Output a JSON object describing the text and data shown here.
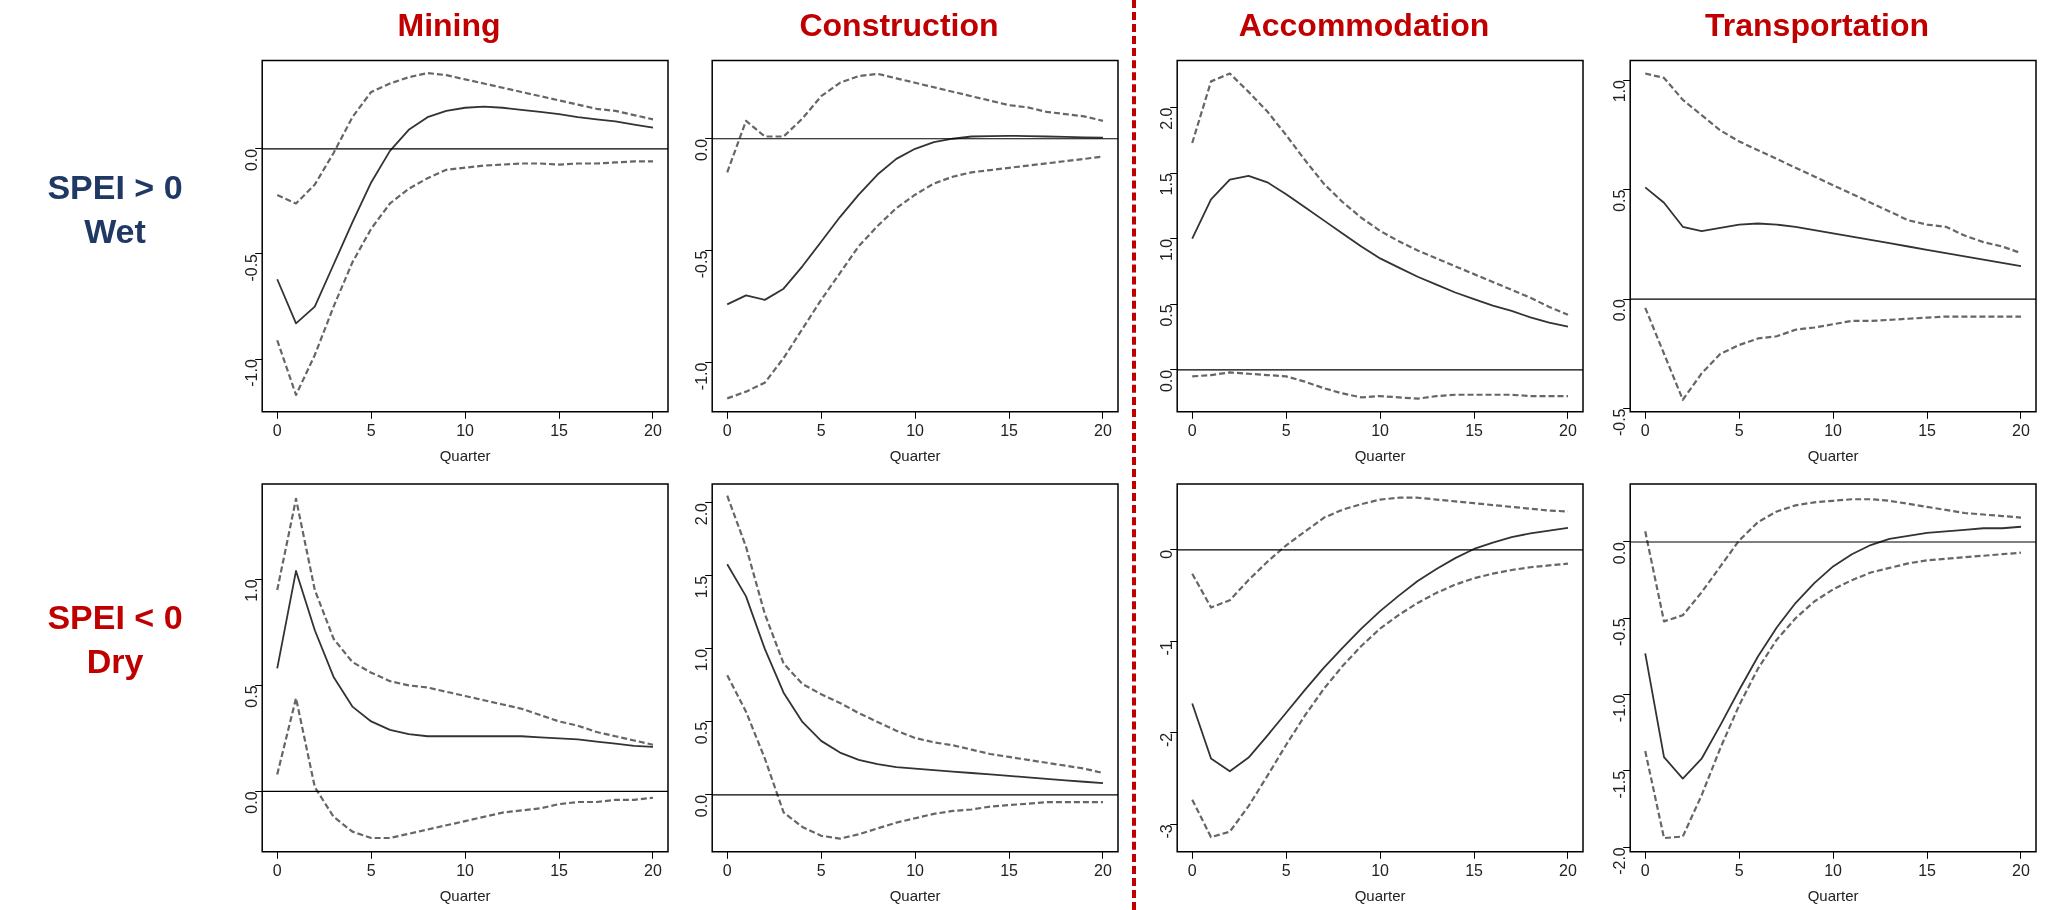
{
  "chart_data": [
    {
      "type": "line",
      "title": "Mining",
      "xlabel": "Quarter",
      "annotations": [
        "SPEI > 0",
        "Wet"
      ],
      "x": [
        0,
        1,
        2,
        3,
        4,
        5,
        6,
        7,
        8,
        9,
        10,
        11,
        12,
        13,
        14,
        15,
        16,
        17,
        18,
        19,
        20
      ],
      "xlim": [
        -0.8,
        20.8
      ],
      "xticks": [
        0,
        5,
        10,
        15,
        20
      ],
      "ylim": [
        -1.25,
        0.42
      ],
      "yticks": [
        {
          "value": -1,
          "label": "-1.0"
        },
        {
          "value": -0.5,
          "label": "-0.5"
        },
        {
          "value": 0,
          "label": "0.0"
        }
      ],
      "ref_lines": [
        {
          "axis": "y",
          "value": 0
        }
      ],
      "series": [
        {
          "color": "#333333",
          "line_style": "solid",
          "values": [
            -0.62,
            -0.83,
            -0.75,
            -0.55,
            -0.35,
            -0.16,
            -0.01,
            0.09,
            0.15,
            0.18,
            0.195,
            0.2,
            0.195,
            0.185,
            0.175,
            0.165,
            0.15,
            0.14,
            0.13,
            0.115,
            0.1
          ]
        },
        {
          "color": "#666666",
          "line_style": "dashed",
          "values": [
            -0.22,
            -0.26,
            -0.17,
            -0.02,
            0.15,
            0.27,
            0.31,
            0.34,
            0.36,
            0.35,
            0.33,
            0.31,
            0.29,
            0.27,
            0.25,
            0.23,
            0.21,
            0.19,
            0.18,
            0.16,
            0.14
          ]
        },
        {
          "color": "#666666",
          "line_style": "dashed",
          "values": [
            -0.91,
            -1.17,
            -0.98,
            -0.75,
            -0.54,
            -0.38,
            -0.26,
            -0.19,
            -0.14,
            -0.1,
            -0.09,
            -0.08,
            -0.075,
            -0.07,
            -0.07,
            -0.075,
            -0.07,
            -0.07,
            -0.065,
            -0.06,
            -0.06
          ]
        }
      ]
    },
    {
      "type": "line",
      "title": "Construction",
      "xlabel": "Quarter",
      "x": [
        0,
        1,
        2,
        3,
        4,
        5,
        6,
        7,
        8,
        9,
        10,
        11,
        12,
        13,
        14,
        15,
        16,
        17,
        18,
        19,
        20
      ],
      "xlim": [
        -0.8,
        20.8
      ],
      "xticks": [
        0,
        5,
        10,
        15,
        20
      ],
      "ylim": [
        -1.22,
        0.35
      ],
      "yticks": [
        {
          "value": -1,
          "label": "-1.0"
        },
        {
          "value": -0.5,
          "label": "-0.5"
        },
        {
          "value": 0,
          "label": "0.0"
        }
      ],
      "ref_lines": [
        {
          "axis": "y",
          "value": 0
        }
      ],
      "series": [
        {
          "color": "#333333",
          "line_style": "solid",
          "values": [
            -0.74,
            -0.7,
            -0.72,
            -0.67,
            -0.57,
            -0.46,
            -0.35,
            -0.25,
            -0.16,
            -0.09,
            -0.045,
            -0.015,
            0,
            0.01,
            0.012,
            0.013,
            0.012,
            0.01,
            0.008,
            0.006,
            0.005
          ]
        },
        {
          "color": "#666666",
          "line_style": "dashed",
          "values": [
            -0.15,
            0.08,
            0.01,
            0.01,
            0.09,
            0.19,
            0.25,
            0.28,
            0.29,
            0.27,
            0.25,
            0.23,
            0.21,
            0.19,
            0.17,
            0.15,
            0.14,
            0.12,
            0.11,
            0.1,
            0.08
          ]
        },
        {
          "color": "#666666",
          "line_style": "dashed",
          "values": [
            -1.16,
            -1.13,
            -1.09,
            -0.98,
            -0.85,
            -0.72,
            -0.6,
            -0.48,
            -0.39,
            -0.31,
            -0.25,
            -0.2,
            -0.17,
            -0.15,
            -0.14,
            -0.13,
            -0.12,
            -0.11,
            -0.1,
            -0.09,
            -0.08
          ]
        }
      ]
    },
    {
      "type": "line",
      "title": "Accommodation",
      "xlabel": "Quarter",
      "x": [
        0,
        1,
        2,
        3,
        4,
        5,
        6,
        7,
        8,
        9,
        10,
        11,
        12,
        13,
        14,
        15,
        16,
        17,
        18,
        19,
        20
      ],
      "xlim": [
        -0.8,
        20.8
      ],
      "xticks": [
        0,
        5,
        10,
        15,
        20
      ],
      "ylim": [
        -0.32,
        2.36
      ],
      "yticks": [
        {
          "value": 0,
          "label": "0.0"
        },
        {
          "value": 0.5,
          "label": "0.5"
        },
        {
          "value": 1,
          "label": "1.0"
        },
        {
          "value": 1.5,
          "label": "1.5"
        },
        {
          "value": 2,
          "label": "2.0"
        }
      ],
      "ref_lines": [
        {
          "axis": "y",
          "value": 0
        }
      ],
      "series": [
        {
          "color": "#333333",
          "line_style": "solid",
          "values": [
            1,
            1.3,
            1.45,
            1.48,
            1.43,
            1.34,
            1.24,
            1.14,
            1.04,
            0.94,
            0.85,
            0.78,
            0.71,
            0.65,
            0.59,
            0.54,
            0.49,
            0.45,
            0.4,
            0.36,
            0.33
          ]
        },
        {
          "color": "#666666",
          "line_style": "dashed",
          "values": [
            1.73,
            2.2,
            2.26,
            2.12,
            1.97,
            1.79,
            1.6,
            1.42,
            1.28,
            1.16,
            1.06,
            0.98,
            0.91,
            0.85,
            0.79,
            0.73,
            0.67,
            0.61,
            0.55,
            0.48,
            0.42
          ]
        },
        {
          "color": "#666666",
          "line_style": "dashed",
          "values": [
            -0.05,
            -0.04,
            -0.02,
            -0.03,
            -0.04,
            -0.05,
            -0.09,
            -0.14,
            -0.18,
            -0.21,
            -0.2,
            -0.21,
            -0.22,
            -0.2,
            -0.19,
            -0.19,
            -0.19,
            -0.19,
            -0.2,
            -0.2,
            -0.2
          ]
        }
      ]
    },
    {
      "type": "line",
      "title": "Transportation",
      "xlabel": "Quarter",
      "x": [
        0,
        1,
        2,
        3,
        4,
        5,
        6,
        7,
        8,
        9,
        10,
        11,
        12,
        13,
        14,
        15,
        16,
        17,
        18,
        19,
        20
      ],
      "xlim": [
        -0.8,
        20.8
      ],
      "xticks": [
        0,
        5,
        10,
        15,
        20
      ],
      "ylim": [
        -0.515,
        1.09
      ],
      "yticks": [
        {
          "value": -0.5,
          "label": "-0.5"
        },
        {
          "value": 0,
          "label": "0.0"
        },
        {
          "value": 0.5,
          "label": "0.5"
        },
        {
          "value": 1,
          "label": "1.0"
        }
      ],
      "ref_lines": [
        {
          "axis": "y",
          "value": 0
        }
      ],
      "series": [
        {
          "color": "#333333",
          "line_style": "solid",
          "values": [
            0.51,
            0.44,
            0.33,
            0.31,
            0.325,
            0.34,
            0.345,
            0.34,
            0.33,
            0.315,
            0.3,
            0.285,
            0.27,
            0.255,
            0.24,
            0.225,
            0.21,
            0.195,
            0.18,
            0.165,
            0.15
          ]
        },
        {
          "color": "#666666",
          "line_style": "dashed",
          "values": [
            1.03,
            1.01,
            0.91,
            0.84,
            0.77,
            0.72,
            0.68,
            0.64,
            0.6,
            0.56,
            0.52,
            0.48,
            0.44,
            0.4,
            0.36,
            0.34,
            0.33,
            0.29,
            0.26,
            0.24,
            0.21
          ]
        },
        {
          "color": "#666666",
          "line_style": "dashed",
          "values": [
            -0.04,
            -0.25,
            -0.46,
            -0.34,
            -0.25,
            -0.21,
            -0.18,
            -0.17,
            -0.14,
            -0.13,
            -0.115,
            -0.1,
            -0.1,
            -0.095,
            -0.09,
            -0.085,
            -0.08,
            -0.08,
            -0.08,
            -0.08,
            -0.08
          ]
        }
      ]
    },
    {
      "type": "line",
      "xlabel": "Quarter",
      "annotations": [
        "SPEI < 0",
        "Dry"
      ],
      "x": [
        0,
        1,
        2,
        3,
        4,
        5,
        6,
        7,
        8,
        9,
        10,
        11,
        12,
        13,
        14,
        15,
        16,
        17,
        18,
        19,
        20
      ],
      "xlim": [
        -0.8,
        20.8
      ],
      "xticks": [
        0,
        5,
        10,
        15,
        20
      ],
      "ylim": [
        -0.285,
        1.45
      ],
      "yticks": [
        {
          "value": 0,
          "label": "0.0"
        },
        {
          "value": 0.5,
          "label": "0.5"
        },
        {
          "value": 1,
          "label": "1.0"
        }
      ],
      "ref_lines": [
        {
          "axis": "y",
          "value": 0
        }
      ],
      "series": [
        {
          "color": "#333333",
          "line_style": "solid",
          "values": [
            0.58,
            1.04,
            0.76,
            0.54,
            0.4,
            0.33,
            0.29,
            0.27,
            0.26,
            0.26,
            0.26,
            0.26,
            0.26,
            0.26,
            0.255,
            0.25,
            0.245,
            0.235,
            0.225,
            0.215,
            0.21
          ]
        },
        {
          "color": "#666666",
          "line_style": "dashed",
          "values": [
            0.95,
            1.38,
            0.95,
            0.72,
            0.61,
            0.56,
            0.52,
            0.5,
            0.49,
            0.47,
            0.45,
            0.43,
            0.41,
            0.39,
            0.36,
            0.33,
            0.31,
            0.28,
            0.26,
            0.24,
            0.22
          ]
        },
        {
          "color": "#666666",
          "line_style": "dashed",
          "values": [
            0.08,
            0.44,
            0.02,
            -0.12,
            -0.19,
            -0.22,
            -0.22,
            -0.2,
            -0.18,
            -0.16,
            -0.14,
            -0.12,
            -0.1,
            -0.09,
            -0.08,
            -0.06,
            -0.05,
            -0.05,
            -0.04,
            -0.04,
            -0.03
          ]
        }
      ]
    },
    {
      "type": "line",
      "xlabel": "Quarter",
      "x": [
        0,
        1,
        2,
        3,
        4,
        5,
        6,
        7,
        8,
        9,
        10,
        11,
        12,
        13,
        14,
        15,
        16,
        17,
        18,
        19,
        20
      ],
      "xlim": [
        -0.8,
        20.8
      ],
      "xticks": [
        0,
        5,
        10,
        15,
        20
      ],
      "ylim": [
        -0.39,
        2.13
      ],
      "yticks": [
        {
          "value": 0,
          "label": "0.0"
        },
        {
          "value": 0.5,
          "label": "0.5"
        },
        {
          "value": 1,
          "label": "1.0"
        },
        {
          "value": 1.5,
          "label": "1.5"
        },
        {
          "value": 2,
          "label": "2.0"
        }
      ],
      "ref_lines": [
        {
          "axis": "y",
          "value": 0
        }
      ],
      "series": [
        {
          "color": "#333333",
          "line_style": "solid",
          "values": [
            1.58,
            1.36,
            1,
            0.7,
            0.5,
            0.37,
            0.29,
            0.24,
            0.21,
            0.19,
            0.18,
            0.17,
            0.16,
            0.15,
            0.14,
            0.13,
            0.12,
            0.11,
            0.1,
            0.09,
            0.08
          ]
        },
        {
          "color": "#666666",
          "line_style": "dashed",
          "values": [
            2.05,
            1.7,
            1.24,
            0.9,
            0.76,
            0.69,
            0.63,
            0.56,
            0.5,
            0.44,
            0.39,
            0.36,
            0.34,
            0.31,
            0.28,
            0.26,
            0.24,
            0.22,
            0.2,
            0.18,
            0.15
          ]
        },
        {
          "color": "#666666",
          "line_style": "dashed",
          "values": [
            0.82,
            0.57,
            0.25,
            -0.12,
            -0.22,
            -0.28,
            -0.3,
            -0.27,
            -0.23,
            -0.19,
            -0.16,
            -0.13,
            -0.11,
            -0.1,
            -0.08,
            -0.07,
            -0.06,
            -0.05,
            -0.05,
            -0.05,
            -0.05
          ]
        }
      ]
    },
    {
      "type": "line",
      "xlabel": "Quarter",
      "x": [
        0,
        1,
        2,
        3,
        4,
        5,
        6,
        7,
        8,
        9,
        10,
        11,
        12,
        13,
        14,
        15,
        16,
        17,
        18,
        19,
        20
      ],
      "xlim": [
        -0.8,
        20.8
      ],
      "xticks": [
        0,
        5,
        10,
        15,
        20
      ],
      "ylim": [
        -3.3,
        0.72
      ],
      "yticks": [
        {
          "value": -3,
          "label": "-3"
        },
        {
          "value": -2,
          "label": "-2"
        },
        {
          "value": -1,
          "label": "-1"
        },
        {
          "value": 0,
          "label": "0"
        }
      ],
      "ref_lines": [
        {
          "axis": "y",
          "value": 0
        }
      ],
      "series": [
        {
          "color": "#333333",
          "line_style": "solid",
          "values": [
            -1.68,
            -2.28,
            -2.42,
            -2.27,
            -2.03,
            -1.78,
            -1.53,
            -1.29,
            -1.07,
            -0.86,
            -0.67,
            -0.5,
            -0.34,
            -0.21,
            -0.09,
            0.01,
            0.08,
            0.14,
            0.18,
            0.21,
            0.24
          ]
        },
        {
          "color": "#666666",
          "line_style": "dashed",
          "values": [
            -0.26,
            -0.63,
            -0.55,
            -0.33,
            -0.13,
            0.05,
            0.2,
            0.35,
            0.44,
            0.5,
            0.55,
            0.57,
            0.57,
            0.55,
            0.53,
            0.51,
            0.49,
            0.47,
            0.45,
            0.43,
            0.42
          ]
        },
        {
          "color": "#666666",
          "line_style": "dashed",
          "values": [
            -2.73,
            -3.14,
            -3.08,
            -2.8,
            -2.47,
            -2.13,
            -1.81,
            -1.52,
            -1.27,
            -1.05,
            -0.86,
            -0.71,
            -0.58,
            -0.47,
            -0.38,
            -0.31,
            -0.26,
            -0.22,
            -0.19,
            -0.17,
            -0.15
          ]
        }
      ]
    },
    {
      "type": "line",
      "xlabel": "Quarter",
      "x": [
        0,
        1,
        2,
        3,
        4,
        5,
        6,
        7,
        8,
        9,
        10,
        11,
        12,
        13,
        14,
        15,
        16,
        17,
        18,
        19,
        20
      ],
      "xlim": [
        -0.8,
        20.8
      ],
      "xticks": [
        0,
        5,
        10,
        15,
        20
      ],
      "ylim": [
        -2.03,
        0.38
      ],
      "yticks": [
        {
          "value": -2,
          "label": "-2.0"
        },
        {
          "value": -1.5,
          "label": "-1.5"
        },
        {
          "value": -1,
          "label": "-1.0"
        },
        {
          "value": -0.5,
          "label": "-0.5"
        },
        {
          "value": 0,
          "label": "0.0"
        }
      ],
      "ref_lines": [
        {
          "axis": "y",
          "value": 0
        }
      ],
      "series": [
        {
          "color": "#333333",
          "line_style": "solid",
          "values": [
            -0.73,
            -1.41,
            -1.55,
            -1.42,
            -1.2,
            -0.97,
            -0.75,
            -0.56,
            -0.4,
            -0.27,
            -0.16,
            -0.08,
            -0.02,
            0.02,
            0.04,
            0.06,
            0.07,
            0.08,
            0.09,
            0.09,
            0.1
          ]
        },
        {
          "color": "#666666",
          "line_style": "dashed",
          "values": [
            0.07,
            -0.52,
            -0.48,
            -0.33,
            -0.16,
            0.01,
            0.13,
            0.2,
            0.24,
            0.26,
            0.27,
            0.28,
            0.28,
            0.27,
            0.25,
            0.23,
            0.21,
            0.19,
            0.18,
            0.17,
            0.16
          ]
        },
        {
          "color": "#666666",
          "line_style": "dashed",
          "values": [
            -1.37,
            -1.94,
            -1.93,
            -1.66,
            -1.35,
            -1.07,
            -0.83,
            -0.64,
            -0.5,
            -0.39,
            -0.31,
            -0.25,
            -0.2,
            -0.17,
            -0.14,
            -0.12,
            -0.11,
            -0.1,
            -0.09,
            -0.08,
            -0.07
          ]
        }
      ]
    }
  ]
}
